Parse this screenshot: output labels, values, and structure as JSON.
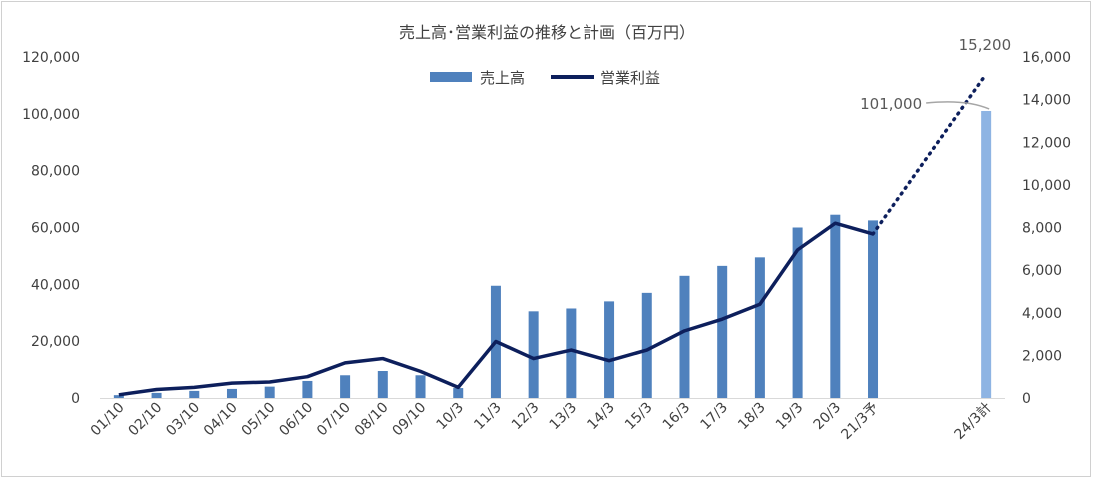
{
  "colors": {
    "bar": "#4f81bd",
    "bar_plan": "#8eb4e3",
    "line": "#0d1f5c",
    "axis": "#d9d9d9",
    "text": "#404040",
    "annotation_line": "#a6a6a6"
  },
  "chart_data": {
    "type": "bar",
    "title": "売上高･営業利益の推移と計画（百万円）",
    "categories": [
      "01/10",
      "02/10",
      "03/10",
      "04/10",
      "05/10",
      "06/10",
      "07/10",
      "08/10",
      "09/10",
      "10/3",
      "11/3",
      "12/3",
      "13/3",
      "14/3",
      "15/3",
      "16/3",
      "17/3",
      "18/3",
      "19/3",
      "20/3",
      "21/3予",
      "",
      "",
      "24/3計"
    ],
    "legend": {
      "position": "top",
      "entries": [
        "売上高",
        "営業利益"
      ]
    },
    "y_left": {
      "min": 0,
      "max": 120000,
      "ticks": [
        "0",
        "20,000",
        "40,000",
        "60,000",
        "80,000",
        "100,000",
        "120,000"
      ]
    },
    "y_right": {
      "min": 0,
      "max": 16000,
      "ticks": [
        "0",
        "2,000",
        "4,000",
        "6,000",
        "8,000",
        "10,000",
        "12,000",
        "14,000",
        "16,000"
      ]
    },
    "series": [
      {
        "name": "売上高",
        "kind": "bar",
        "axis": "left",
        "values": [
          1000,
          1800,
          2500,
          3200,
          4000,
          6000,
          8000,
          9500,
          8000,
          3500,
          39500,
          30500,
          31500,
          34000,
          37000,
          43000,
          46500,
          49500,
          60000,
          64500,
          62500,
          null,
          null,
          101000
        ],
        "plan_index": 23
      },
      {
        "name": "営業利益",
        "kind": "line",
        "axis": "right",
        "values": [
          150,
          400,
          500,
          700,
          750,
          1000,
          1650,
          1850,
          1250,
          500,
          2650,
          1850,
          2250,
          1750,
          2250,
          3150,
          3700,
          4400,
          6950,
          8200,
          7700,
          null,
          null,
          15200
        ],
        "dotted_from_index": 20
      }
    ],
    "annotations": [
      {
        "label": "101,000",
        "target_series": "売上高",
        "index": 23
      },
      {
        "label": "15,200",
        "target_series": "営業利益",
        "index": 23
      }
    ],
    "grid": false
  }
}
